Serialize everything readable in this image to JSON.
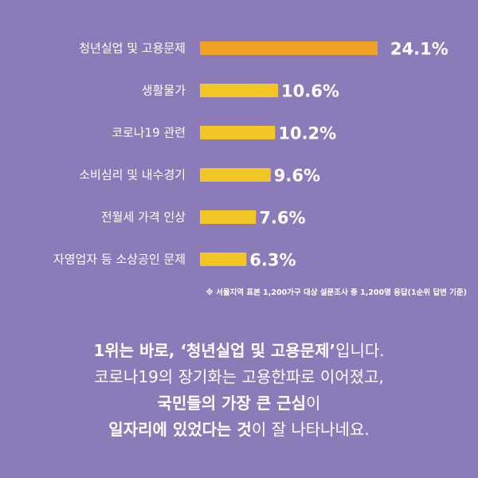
{
  "chart_data": {
    "type": "bar",
    "orientation": "horizontal",
    "categories": [
      "청년실업 및 고용문제",
      "생활물가",
      "코로나19 관련",
      "소비심리 및 내수경기",
      "전월세 가격 인상",
      "자영업자 등 소상공인 문제"
    ],
    "values": [
      24.1,
      10.6,
      10.2,
      9.6,
      7.6,
      6.3
    ],
    "value_labels": [
      "24.1%",
      "10.6%",
      "10.2%",
      "9.6%",
      "7.6%",
      "6.3%"
    ],
    "highlight_color": "#f0a224",
    "bar_color": "#f2c624",
    "grid": false,
    "legend": false
  },
  "footnote": "※ 서울지역 표본 1,200가구 대상 설문조사 중 1,200명 응답(1순위 답변 기준)",
  "summary": {
    "l1_a": "1위는 바로, ‘청년실업 및 고용문제’",
    "l1_b": "입니다.",
    "l2": "코로나19의 장기화는 고용한파로 이어졌고,",
    "l3_a": "국민들의 가장 큰 근심",
    "l3_b": "이",
    "l4_a": "일자리에 있었다는 것",
    "l4_b": "이 잘 나타나네요."
  },
  "colors": {
    "background": "#8b7bb8",
    "text": "#ffffff"
  }
}
